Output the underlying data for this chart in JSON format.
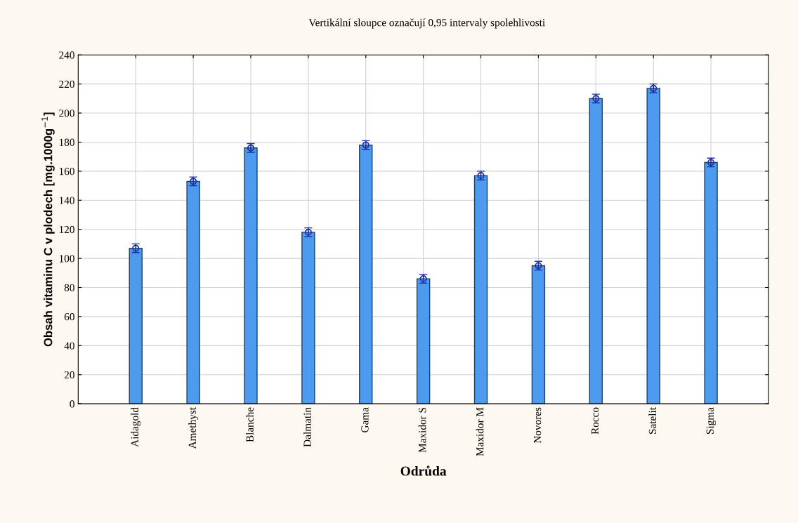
{
  "chart_data": {
    "type": "bar",
    "title": "Vertikální sloupce označují 0,95 intervaly spolehlivosti",
    "xlabel": "Odrůda",
    "ylabel": "Obsah vitaminu C v plodech [mg.1000g$^{−1}$]",
    "categories": [
      "Aidagold",
      "Amethyst",
      "Blanche",
      "Dalmatin",
      "Gama",
      "Maxidor S",
      "Maxidor M",
      "Novores",
      "Rocco",
      "Satelit",
      "Sigma"
    ],
    "series": [
      {
        "color": "#4d9bee",
        "values": [
          107,
          153,
          176,
          118,
          178,
          86,
          157,
          95,
          210,
          217,
          166
        ],
        "errors": [
          3,
          3,
          3,
          3,
          3,
          3,
          3,
          3,
          3,
          3,
          3
        ]
      },
      {
        "type": "scatter",
        "color": "#1a2fa0",
        "marker": "circle",
        "x": [
          "Aidagold",
          "Amethyst",
          "Blanche",
          "Dalmatin",
          "Gama",
          "Maxidor S",
          "Maxidor M",
          "Novores",
          "Rocco",
          "Satelit",
          "Sigma"
        ],
        "values": [
          107,
          153,
          176,
          118,
          178,
          86,
          157,
          95,
          210,
          217,
          166
        ]
      }
    ],
    "ylim": [
      0,
      240
    ],
    "yticks": [
      0,
      20,
      40,
      60,
      80,
      100,
      120,
      140,
      160,
      180,
      200,
      220,
      240
    ],
    "grid": true
  }
}
